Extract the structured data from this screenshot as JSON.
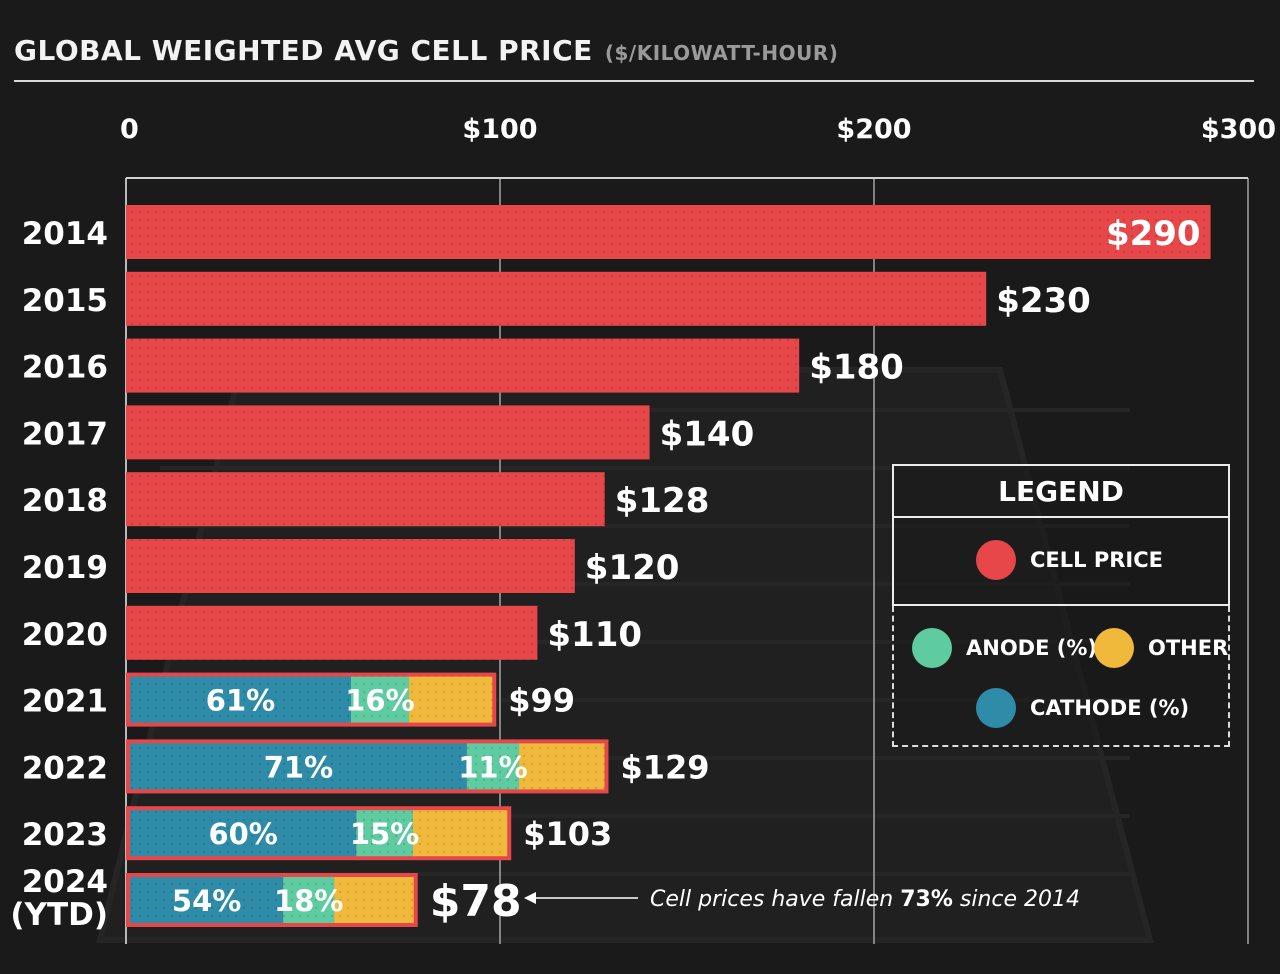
{
  "header": {
    "title": "GLOBAL WEIGHTED AVG CELL PRICE",
    "unit": "($/KILOWATT-HOUR)"
  },
  "legend": {
    "title": "LEGEND",
    "items": [
      {
        "label": "CELL PRICE",
        "color": "#e8474a",
        "icon": "circle-swatch"
      },
      {
        "label": "ANODE (%)",
        "color": "#5ecba1",
        "icon": "circle-swatch"
      },
      {
        "label": "OTHER",
        "color": "#f0b93c",
        "icon": "circle-swatch"
      },
      {
        "label": "CATHODE (%)",
        "color": "#2f8ca9",
        "icon": "circle-swatch"
      }
    ]
  },
  "annotation": {
    "prefix": "Cell prices have fallen ",
    "highlight": "73%",
    "suffix": " since 2014"
  },
  "colors": {
    "cell_price": "#e8474a",
    "cathode": "#2f8ca9",
    "anode": "#5ecba1",
    "other": "#f0b93c",
    "background": "#1a1a1a"
  },
  "chart_data": {
    "type": "bar",
    "orientation": "horizontal",
    "title": "GLOBAL WEIGHTED AVG CELL PRICE",
    "unit_label": "($/KILOWATT-HOUR)",
    "xlim": [
      0,
      300
    ],
    "x_ticks": [
      0,
      100,
      200,
      300
    ],
    "x_tick_labels": [
      "0",
      "$100",
      "$200",
      "$300"
    ],
    "grid": true,
    "legend_position": "bottom-right",
    "categories": [
      "2014",
      "2015",
      "2016",
      "2017",
      "2018",
      "2019",
      "2020",
      "2021",
      "2022",
      "2023",
      "2024 (YTD)"
    ],
    "category_lines": [
      [
        "2014"
      ],
      [
        "2015"
      ],
      [
        "2016"
      ],
      [
        "2017"
      ],
      [
        "2018"
      ],
      [
        "2019"
      ],
      [
        "2020"
      ],
      [
        "2021"
      ],
      [
        "2022"
      ],
      [
        "2023"
      ],
      [
        "2024",
        "(YTD)"
      ]
    ],
    "values": [
      290,
      230,
      180,
      140,
      128,
      120,
      110,
      99,
      129,
      103,
      78
    ],
    "value_labels": [
      "$290",
      "$230",
      "$180",
      "$140",
      "$128",
      "$120",
      "$110",
      "$99",
      "$129",
      "$103",
      "$78"
    ],
    "composition": [
      null,
      null,
      null,
      null,
      null,
      null,
      null,
      {
        "cathode": 61,
        "anode": 16
      },
      {
        "cathode": 71,
        "anode": 11
      },
      {
        "cathode": 60,
        "anode": 15
      },
      {
        "cathode": 54,
        "anode": 18
      }
    ],
    "composition_labels": [
      null,
      null,
      null,
      null,
      null,
      null,
      null,
      {
        "cathode": "61%",
        "anode": "16%"
      },
      {
        "cathode": "71%",
        "anode": "11%"
      },
      {
        "cathode": "60%",
        "anode": "15%"
      },
      {
        "cathode": "54%",
        "anode": "18%"
      }
    ]
  }
}
